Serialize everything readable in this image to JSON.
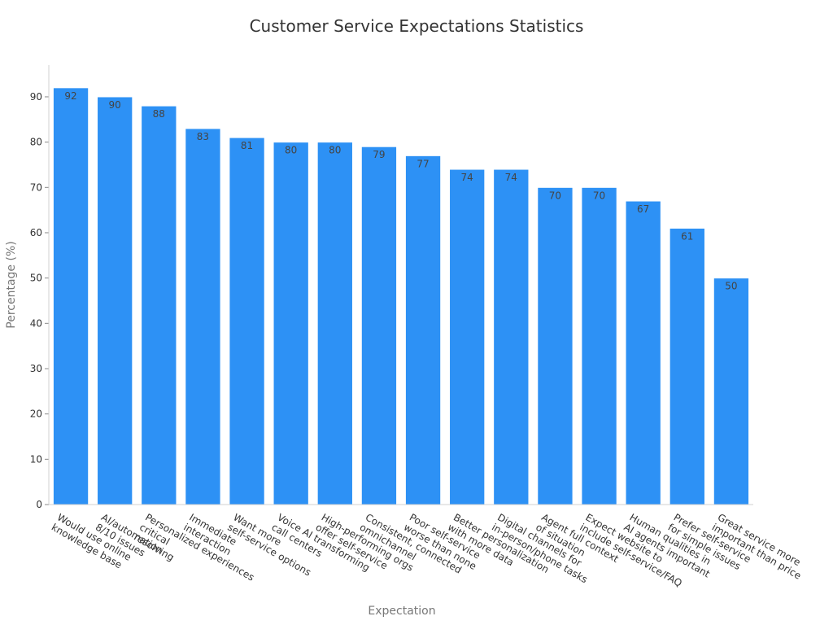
{
  "chart_data": {
    "type": "bar",
    "title": "Customer Service Expectations Statistics",
    "xlabel": "Expectation",
    "ylabel": "Percentage (%)",
    "ylim": [
      0,
      97
    ],
    "yticks": [
      0,
      10,
      20,
      30,
      40,
      50,
      60,
      70,
      80,
      90
    ],
    "grid": false,
    "legend": "none",
    "bar_color": "#2d91f5",
    "categories": [
      [
        "Would use online",
        "knowledge base"
      ],
      [
        "AI/automation",
        "8/10 issues"
      ],
      [
        "Personalized experiences",
        "critical",
        "resolving"
      ],
      [
        "Immediate",
        "interaction"
      ],
      [
        "Want more",
        "self-service options"
      ],
      [
        "Voice AI transforming",
        "call centers"
      ],
      [
        "High-performing orgs",
        "offer self-service"
      ],
      [
        "Consistent, connected",
        "omnichannel"
      ],
      [
        "Poor self-service",
        "worse than none"
      ],
      [
        "Better personalization",
        "with more data"
      ],
      [
        "Digital channels for",
        "in-person/phone tasks"
      ],
      [
        "Agent full context",
        "of situation"
      ],
      [
        "Expect website to",
        "include self-service/FAQ"
      ],
      [
        "Human qualities in",
        "AI agents important"
      ],
      [
        "Prefer self-service",
        "for simple issues"
      ],
      [
        "Great service more",
        "important than price"
      ]
    ],
    "values": [
      92,
      90,
      88,
      83,
      81,
      80,
      80,
      79,
      77,
      74,
      74,
      70,
      70,
      67,
      61,
      50
    ]
  }
}
